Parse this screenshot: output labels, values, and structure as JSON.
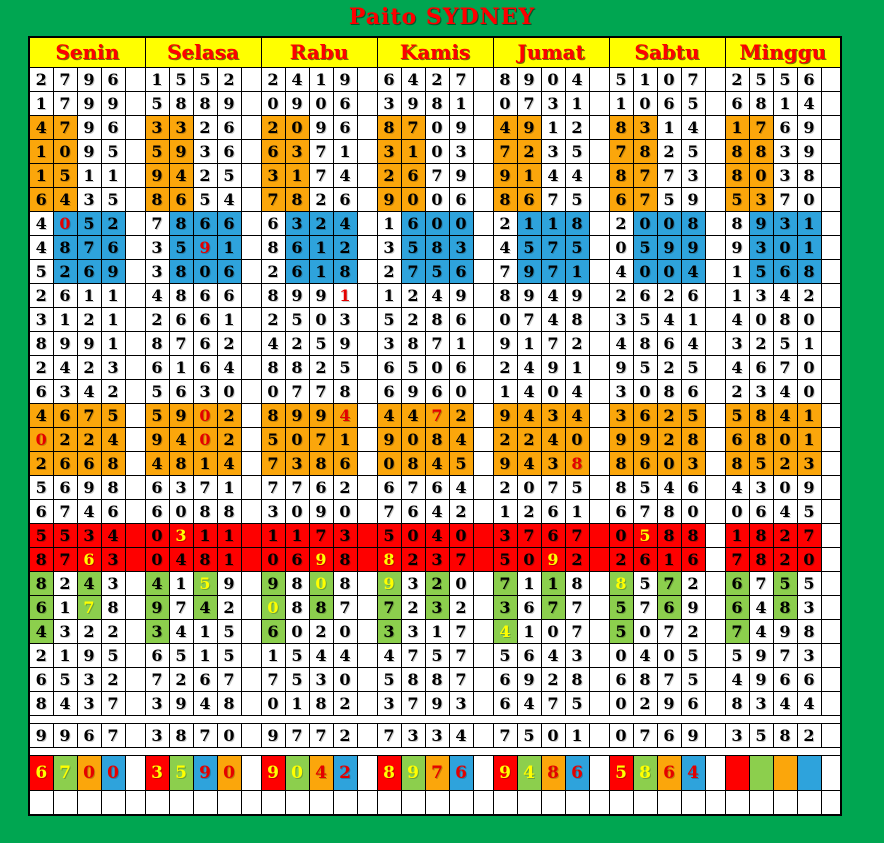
{
  "title": "Paito SYDNEY",
  "days": [
    "Senin",
    "Selasa",
    "Rabu",
    "Kamis",
    "Jumat",
    "Sabtu",
    "Minggu"
  ],
  "colors": {
    "board_green": "#00A651",
    "header_yellow": "#FFFF00",
    "header_text_red": "#FE0000",
    "grid_line": "#000000"
  },
  "cell_bg": {
    "w": "#FFFFFF",
    "o": "#FBA60B",
    "b": "#2EA3DC",
    "r": "#FE0000",
    "g": "#8CCF4D"
  },
  "cell_fg": {
    "k": "#000000",
    "r": "#E40000",
    "y": "#FFFF00"
  },
  "rows": [
    {
      "t": "n",
      "d": [
        "2796",
        "1552",
        "2419",
        "6427",
        "8904",
        "5107",
        "2556"
      ],
      "s": [
        "wkwkwkwk",
        "wkwkwkwk",
        "wkwkwkwk",
        "wkwkwkwk",
        "wkwkwkwk",
        "wkwkwkwk",
        "wkwkwkwk"
      ]
    },
    {
      "t": "n",
      "d": [
        "1799",
        "5889",
        "0906",
        "3981",
        "0731",
        "1065",
        "6814"
      ],
      "s": [
        "wkwkwkwk",
        "wkwkwkwk",
        "wkwkwkwk",
        "wkwkwkwk",
        "wkwkwkwk",
        "wkwkwkwk",
        "wkwkwkwk"
      ]
    },
    {
      "t": "n",
      "d": [
        "4796",
        "3326",
        "2096",
        "8709",
        "4912",
        "8314",
        "1769"
      ],
      "s": [
        "okokwkwk",
        "okokwkwk",
        "okokwkwk",
        "okokwkwk",
        "okokwkwk",
        "okokwkwk",
        "okokwkwk"
      ]
    },
    {
      "t": "n",
      "d": [
        "1095",
        "5936",
        "6371",
        "3103",
        "7235",
        "7825",
        "8839"
      ],
      "s": [
        "okokwkwk",
        "okokwkwk",
        "okokwkwk",
        "okokwkwk",
        "okokwkwk",
        "okokwkwk",
        "okokwkwk"
      ]
    },
    {
      "t": "n",
      "d": [
        "1511",
        "9425",
        "3174",
        "2679",
        "9144",
        "8773",
        "8038"
      ],
      "s": [
        "okokwkwk",
        "okokwkwk",
        "okokwkwk",
        "okokwkwk",
        "okokwkwk",
        "okokwkwk",
        "okokwkwk"
      ]
    },
    {
      "t": "n",
      "d": [
        "6435",
        "8654",
        "7826",
        "9006",
        "8675",
        "6759",
        "5370"
      ],
      "s": [
        "okokwkwk",
        "okokwkwk",
        "okokwkwk",
        "okokwkwk",
        "okokwkwk",
        "okokwkwk",
        "okokwkwk"
      ]
    },
    {
      "t": "n",
      "d": [
        "4052",
        "7866",
        "6324",
        "1600",
        "2118",
        "2008",
        "8931"
      ],
      "s": [
        "wkbrbkbk",
        "wkbkbkbk",
        "wkbkbkbk",
        "wkbkbkbk",
        "wkbkbkbk",
        "wkbkbkbk",
        "wkbkbkbk"
      ]
    },
    {
      "t": "n",
      "d": [
        "4876",
        "3591",
        "8612",
        "3583",
        "4575",
        "0599",
        "9301"
      ],
      "s": [
        "wkbkbkbk",
        "wkbkbrbk",
        "wkbkbkbk",
        "wkbkbkbk",
        "wkbkbkbk",
        "wkbkbkbk",
        "wkbkbkbk"
      ]
    },
    {
      "t": "n",
      "d": [
        "5269",
        "3806",
        "2618",
        "2756",
        "7971",
        "4004",
        "1568"
      ],
      "s": [
        "wkbkbkbk",
        "wkbkbkbk",
        "wkbkbkbk",
        "wkbkbkbk",
        "wkbkbkbk",
        "wkbkbkbk",
        "wkbkbkbk"
      ]
    },
    {
      "t": "n",
      "d": [
        "2611",
        "4866",
        "8991",
        "1249",
        "8949",
        "2626",
        "1342"
      ],
      "s": [
        "wkwkwkwk",
        "wkwkwkwk",
        "wkwkwkwr",
        "wkwkwkwk",
        "wkwkwkwk",
        "wkwkwkwk",
        "wkwkwkwk"
      ]
    },
    {
      "t": "n",
      "d": [
        "3121",
        "2661",
        "2503",
        "5286",
        "0748",
        "3541",
        "4080"
      ],
      "s": [
        "wkwkwkwk",
        "wkwkwkwk",
        "wkwkwkwk",
        "wkwkwkwk",
        "wkwkwkwk",
        "wkwkwkwk",
        "wkwkwkwk"
      ]
    },
    {
      "t": "n",
      "d": [
        "8991",
        "8762",
        "4259",
        "3871",
        "9172",
        "4864",
        "3251"
      ],
      "s": [
        "wkwkwkwk",
        "wkwkwkwk",
        "wkwkwkwk",
        "wkwkwkwk",
        "wkwkwkwk",
        "wkwkwkwk",
        "wkwkwkwk"
      ]
    },
    {
      "t": "n",
      "d": [
        "2423",
        "6164",
        "8825",
        "6506",
        "2491",
        "9525",
        "4670"
      ],
      "s": [
        "wkwkwkwk",
        "wkwkwkwk",
        "wkwkwkwk",
        "wkwkwkwk",
        "wkwkwkwk",
        "wkwkwkwk",
        "wkwkwkwk"
      ]
    },
    {
      "t": "n",
      "d": [
        "6342",
        "5630",
        "0778",
        "6960",
        "1404",
        "3086",
        "2340"
      ],
      "s": [
        "wkwkwkwk",
        "wkwkwkwk",
        "wkwkwkwk",
        "wkwkwkwk",
        "wkwkwkwk",
        "wkwkwkwk",
        "wkwkwkwk"
      ]
    },
    {
      "t": "n",
      "d": [
        "4675",
        "5902",
        "8994",
        "4472",
        "9434",
        "3625",
        "5841"
      ],
      "s": [
        "okokokok",
        "okokorok",
        "okokokor",
        "okokorok",
        "okokokok",
        "okokokok",
        "okokokok"
      ]
    },
    {
      "t": "n",
      "d": [
        "0224",
        "9402",
        "5071",
        "9084",
        "2240",
        "9928",
        "6801"
      ],
      "s": [
        "orokokok",
        "okokorok",
        "okokokok",
        "okokokok",
        "okokokok",
        "okokokok",
        "okokokok"
      ]
    },
    {
      "t": "n",
      "d": [
        "2668",
        "4814",
        "7386",
        "0845",
        "9438",
        "8603",
        "8523"
      ],
      "s": [
        "okokokok",
        "okokokok",
        "okokokok",
        "okokokok",
        "okokokor",
        "okokokok",
        "okokokok"
      ]
    },
    {
      "t": "n",
      "d": [
        "5698",
        "6371",
        "7762",
        "6764",
        "2075",
        "8546",
        "4309"
      ],
      "s": [
        "wkwkwkwk",
        "wkwkwkwk",
        "wkwkwkwk",
        "wkwkwkwk",
        "wkwkwkwk",
        "wkwkwkwk",
        "wkwkwkwk"
      ]
    },
    {
      "t": "n",
      "d": [
        "6746",
        "6088",
        "3090",
        "7642",
        "1261",
        "6780",
        "0645"
      ],
      "s": [
        "wkwkwkwk",
        "wkwkwkwk",
        "wkwkwkwk",
        "wkwkwkwk",
        "wkwkwkwk",
        "wkwkwkwk",
        "wkwkwkwk"
      ]
    },
    {
      "t": "n",
      "d": [
        "5534",
        "0311",
        "1173",
        "5040",
        "3767",
        "0588",
        "1827"
      ],
      "s": [
        "rkrkrkrk",
        "rkryrkrk",
        "rkrkrkrk",
        "rkrkrkrk",
        "rkrkrkrk",
        "rkryrkrk",
        "rkrkrkrk"
      ],
      "sep": "rrrrrww"
    },
    {
      "t": "n",
      "d": [
        "8763",
        "0481",
        "0698",
        "8237",
        "5092",
        "2616",
        "7820"
      ],
      "s": [
        "rkrkryrk",
        "rkrkrkrk",
        "rkrkryrk",
        "ryrkrkrk",
        "rkrkryrk",
        "rkrkrkrk",
        "rkrkrkrk"
      ],
      "sep": "rrrrrww"
    },
    {
      "t": "n",
      "d": [
        "8243",
        "4159",
        "9808",
        "9320",
        "7118",
        "8572",
        "6755"
      ],
      "s": [
        "gkwkgkwk",
        "gkwkgywk",
        "gkwkgywk",
        "gywkgkwk",
        "gkwkgkwk",
        "gywkgkwk",
        "gkwkgkwk"
      ]
    },
    {
      "t": "n",
      "d": [
        "6178",
        "9742",
        "0887",
        "7232",
        "3677",
        "5769",
        "6483"
      ],
      "s": [
        "gkwkgywk",
        "gkwkgkwk",
        "gywkgkwk",
        "gkwkgkwk",
        "gkwkgkwk",
        "gkwkgkwk",
        "gkwkgkwk"
      ]
    },
    {
      "t": "n",
      "d": [
        "4322",
        "3415",
        "6020",
        "3317",
        "4107",
        "5072",
        "7498"
      ],
      "s": [
        "gkwkwkwk",
        "gkwkwkwk",
        "gkwkwkwk",
        "gkwkwkwk",
        "gywkwkwk",
        "gkwkwkwk",
        "gkwkwkwk"
      ]
    },
    {
      "t": "n",
      "d": [
        "2195",
        "6515",
        "1544",
        "4757",
        "5643",
        "0405",
        "5973"
      ],
      "s": [
        "wkwkwkwk",
        "wkwkwkwk",
        "wkwkwkwk",
        "wkwkwkwk",
        "wkwkwkwk",
        "wkwkwkwk",
        "wkwkwkwk"
      ]
    },
    {
      "t": "n",
      "d": [
        "6532",
        "7267",
        "7530",
        "5887",
        "6928",
        "6875",
        "4966"
      ],
      "s": [
        "wkwkwkwk",
        "wkwkwkwk",
        "wkwkwkwk",
        "wkwkwkwk",
        "wkwkwkwk",
        "wkwkwkwk",
        "wkwkwkwk"
      ]
    },
    {
      "t": "n",
      "d": [
        "8437",
        "3948",
        "0182",
        "3793",
        "6475",
        "0296",
        "8344"
      ],
      "s": [
        "wkwkwkwk",
        "wkwkwkwk",
        "wkwkwkwk",
        "wkwkwkwk",
        "wkwkwkwk",
        "wkwkwkwk",
        "wkwkwkwk"
      ]
    },
    {
      "t": "gap"
    },
    {
      "t": "n",
      "d": [
        "9967",
        "3870",
        "9772",
        "7334",
        "7501",
        "0769",
        "3582"
      ],
      "s": [
        "wkwkwkwk",
        "wkwkwkwk",
        "wkwkwkwk",
        "wkwkwkwk",
        "wkwkwkwk",
        "wkwkwkwk",
        "wkwkwkwk"
      ]
    },
    {
      "t": "gap"
    },
    {
      "t": "sum",
      "d": [
        "6700",
        "3590",
        "9042",
        "8976",
        "9486",
        "5864",
        ""
      ],
      "s": [
        "rygyorbr",
        "rygybror",
        "rygyorbr",
        "rygyorbr",
        "rygyorbr",
        "rygyorbr",
        "rkgkokbk"
      ]
    },
    {
      "t": "n",
      "d": [
        "",
        "",
        "",
        "",
        "",
        "",
        ""
      ],
      "s": [
        "wkwkwkwk",
        "wkwkwkwk",
        "wkwkwkwk",
        "wkwkwkwk",
        "wkwkwkwk",
        "wkwkwkwk",
        "wkwkwkwk"
      ]
    }
  ]
}
